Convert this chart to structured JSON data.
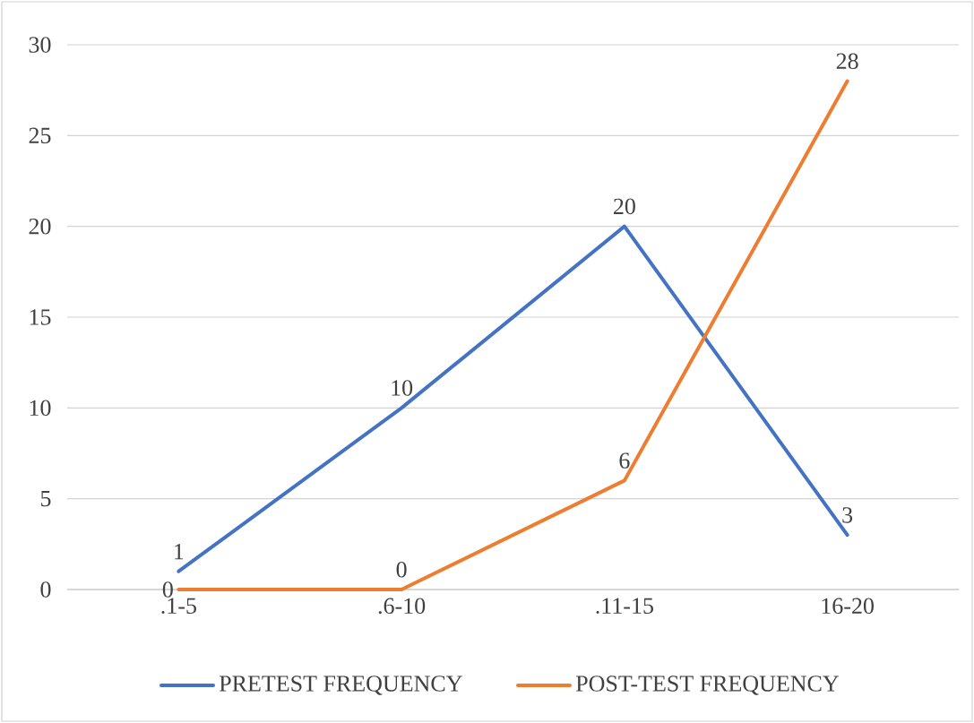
{
  "chart_data": {
    "type": "line",
    "categories": [
      ".1-5",
      ".6-10",
      ".11-15",
      "16-20"
    ],
    "series": [
      {
        "name": "PRETEST FREQUENCY",
        "color": "#4472c4",
        "values": [
          1,
          10,
          20,
          3
        ]
      },
      {
        "name": "POST-TEST FREQUENCY",
        "color": "#ed7d31",
        "values": [
          0,
          0,
          6,
          28
        ]
      }
    ],
    "ylim": [
      0,
      30
    ],
    "yticks": [
      0,
      5,
      10,
      15,
      20,
      25,
      30
    ],
    "grid": "y",
    "legend": "bottom",
    "data_labels": true,
    "marker": "none",
    "line_style": "solid"
  }
}
